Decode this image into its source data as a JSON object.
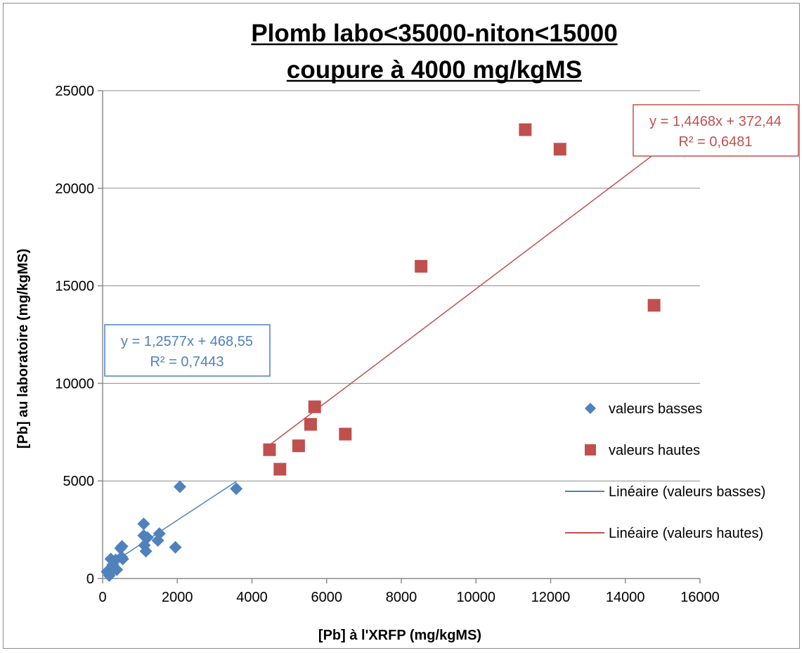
{
  "chart_data": {
    "type": "scatter",
    "title": [
      "Plomb labo<35000-niton<15000",
      "coupure à 4000 mg/kgMS"
    ],
    "xlabel": "[Pb] à l'XRFP (mg/kgMS)",
    "ylabel": "[Pb] au laboratoire (mg/kgMS)",
    "xlim": [
      0,
      16000
    ],
    "ylim": [
      0,
      25000
    ],
    "xticks": [
      0,
      2000,
      4000,
      6000,
      8000,
      10000,
      12000,
      14000,
      16000
    ],
    "yticks": [
      0,
      5000,
      10000,
      15000,
      20000,
      25000
    ],
    "grid": "horizontal major gridlines",
    "legend_position": "right",
    "series": [
      {
        "name": "valeurs basses",
        "marker": "diamond",
        "color": "#4F81BD",
        "points": [
          [
            120,
            350
          ],
          [
            180,
            150
          ],
          [
            220,
            1000
          ],
          [
            270,
            700
          ],
          [
            300,
            500
          ],
          [
            350,
            950
          ],
          [
            380,
            450
          ],
          [
            480,
            1550
          ],
          [
            510,
            1100
          ],
          [
            520,
            1650
          ],
          [
            540,
            1000
          ],
          [
            1100,
            2800
          ],
          [
            1100,
            2200
          ],
          [
            1120,
            1700
          ],
          [
            1160,
            1400
          ],
          [
            1200,
            2100
          ],
          [
            1480,
            1950
          ],
          [
            1520,
            2300
          ],
          [
            1950,
            1600
          ],
          [
            2070,
            4700
          ],
          [
            3580,
            4600
          ]
        ]
      },
      {
        "name": "valeurs hautes",
        "marker": "square",
        "color": "#C0504D",
        "points": [
          [
            4470,
            6600
          ],
          [
            4750,
            5600
          ],
          [
            5250,
            6800
          ],
          [
            5570,
            7900
          ],
          [
            5680,
            8800
          ],
          [
            6500,
            7400
          ],
          [
            8530,
            16000
          ],
          [
            11320,
            23000
          ],
          [
            12250,
            22000
          ],
          [
            14770,
            14000
          ]
        ]
      }
    ],
    "trendlines": [
      {
        "name": "Linéaire (valeurs basses)",
        "color": "#4F81BD",
        "x_range": [
          120,
          3580
        ],
        "slope": 1.2577,
        "intercept": 468.55,
        "equation": "y = 1,2577x + 468,55",
        "r2": "R² = 0,7443"
      },
      {
        "name": "Linéaire (valeurs hautes)",
        "color": "#C0504D",
        "x_range": [
          4470,
          14770
        ],
        "slope": 1.4468,
        "intercept": 372.44,
        "equation": "y = 1,4468x + 372,44",
        "r2": "R² = 0,6481"
      }
    ]
  }
}
